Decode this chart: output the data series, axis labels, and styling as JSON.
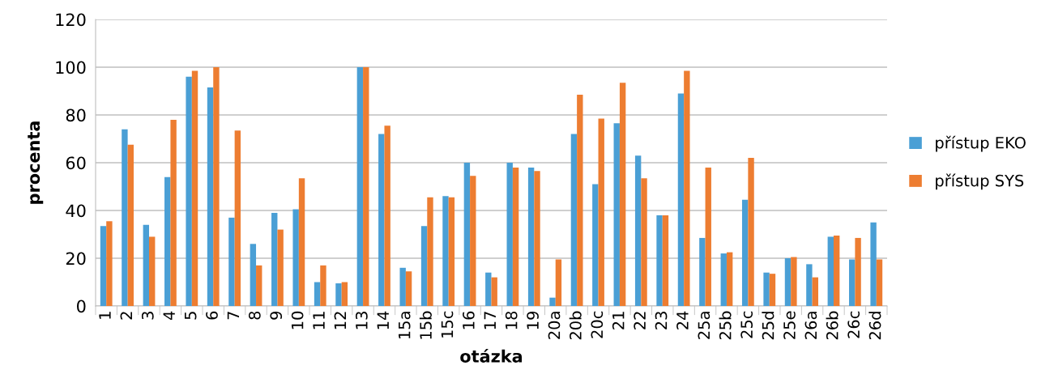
{
  "chart_data": {
    "type": "bar",
    "xlabel": "otázka",
    "ylabel": "procenta",
    "categories": [
      "1",
      "2",
      "3",
      "4",
      "5",
      "6",
      "7",
      "8",
      "9",
      "10",
      "11",
      "12",
      "13",
      "14",
      "15a",
      "15b",
      "15c",
      "16",
      "17",
      "18",
      "19",
      "20a",
      "20b",
      "20c",
      "21",
      "22",
      "23",
      "24",
      "25a",
      "25b",
      "25c",
      "25d",
      "25e",
      "26a",
      "26b",
      "26c",
      "26d"
    ],
    "series": [
      {
        "name": "přístup EKO",
        "color": "#4a9fd5",
        "values": [
          33.5,
          74,
          34,
          54,
          96,
          91.5,
          37,
          26,
          39,
          40.5,
          10,
          9.5,
          100,
          72,
          16,
          33.5,
          46,
          60,
          14,
          60,
          58,
          3.5,
          72,
          51,
          76.5,
          63,
          38,
          89,
          28.5,
          22,
          44.5,
          14,
          20,
          17.5,
          29,
          19.5,
          35
        ]
      },
      {
        "name": "přístup SYS",
        "color": "#ed7d31",
        "values": [
          35.5,
          67.5,
          29,
          78,
          98.5,
          100,
          73.5,
          17,
          32,
          53.5,
          17,
          10,
          100,
          75.5,
          14.5,
          45.5,
          45.5,
          54.5,
          12,
          58,
          56.5,
          19.5,
          88.5,
          78.5,
          93.5,
          53.5,
          38,
          98.5,
          58,
          22.5,
          62,
          13.5,
          20.5,
          12,
          29.5,
          28.5,
          19.5
        ]
      }
    ],
    "ylim": [
      0,
      120
    ],
    "yticks": [
      0,
      20,
      40,
      60,
      80,
      100,
      120
    ],
    "grid": "y",
    "legend": "right"
  }
}
